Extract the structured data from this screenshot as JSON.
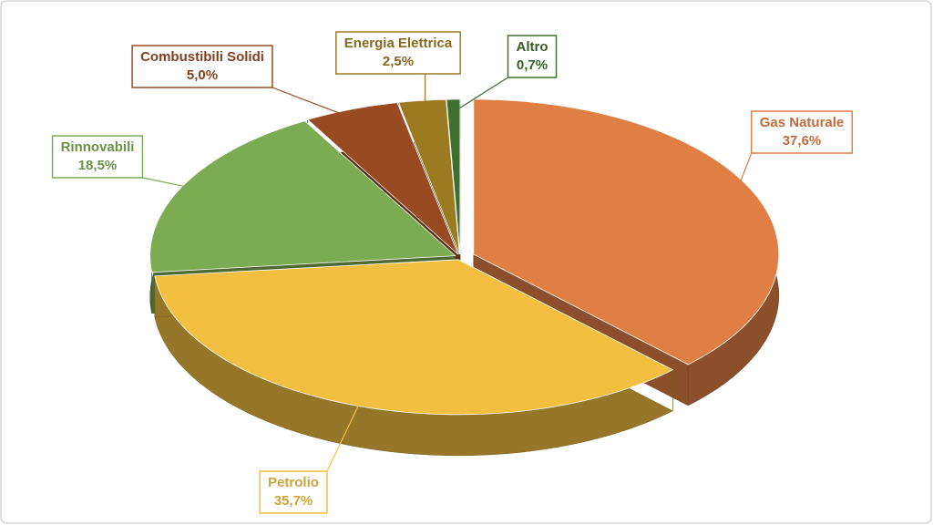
{
  "chart_data": {
    "type": "pie",
    "categories": [
      "Gas Naturale",
      "Petrolio",
      "Rinnovabili",
      "Combustibili Solidi",
      "Energia Elettrica",
      "Altro"
    ],
    "values": [
      37.6,
      35.7,
      18.5,
      5.0,
      2.5,
      0.7
    ],
    "value_labels": [
      "37,6%",
      "35,7%",
      "18,5%",
      "5,0%",
      "2,5%",
      "0,7%"
    ],
    "colors": [
      "#e07f45",
      "#f2bf40",
      "#7bab52",
      "#984a22",
      "#9c7a22",
      "#3f6e2e"
    ]
  }
}
